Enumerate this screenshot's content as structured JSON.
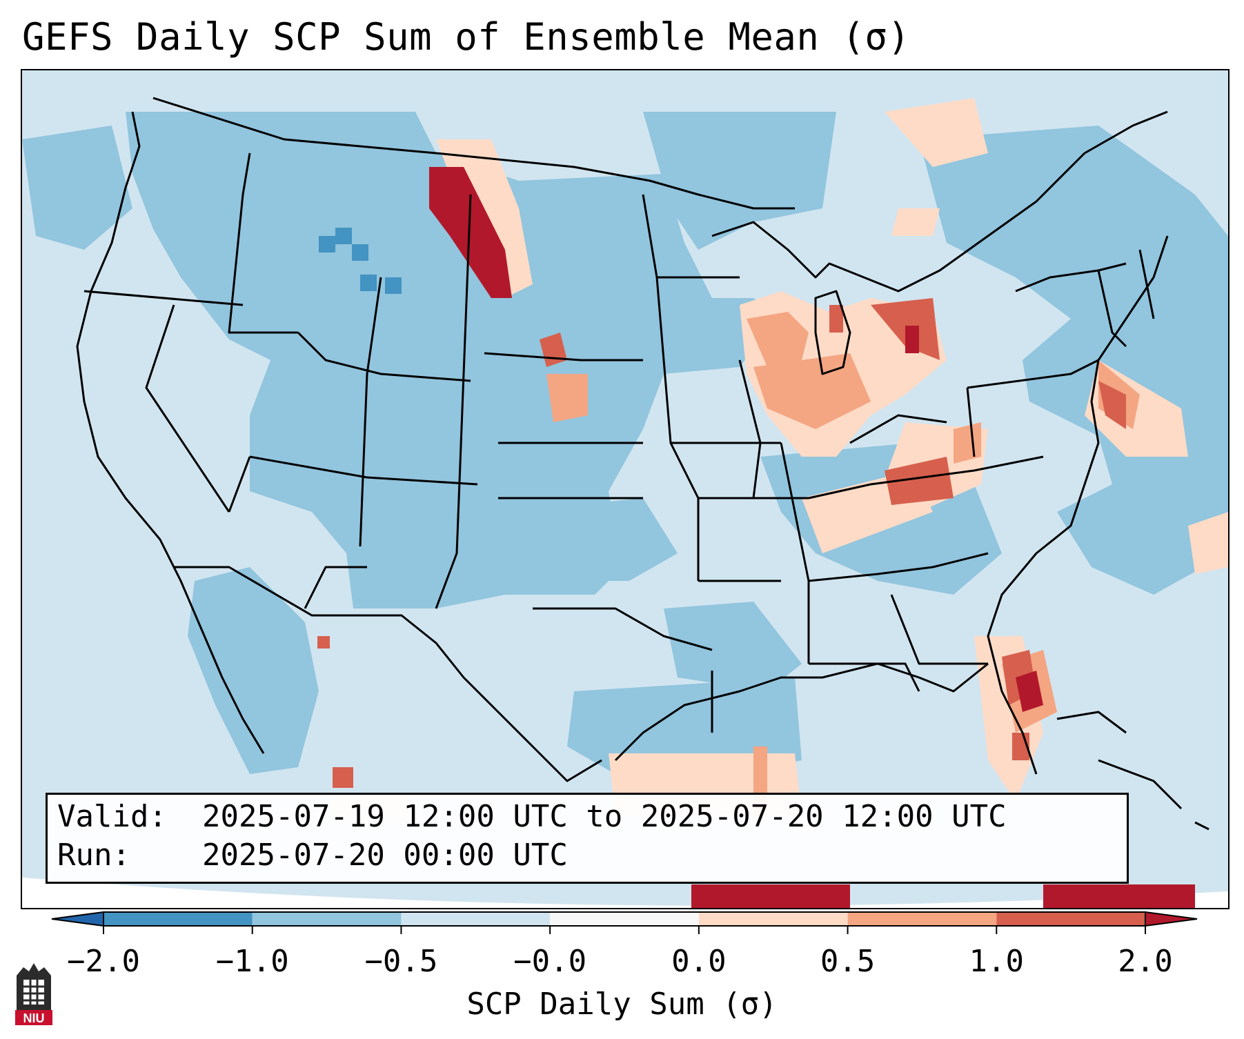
{
  "title": "GEFS Daily SCP Sum of Ensemble Mean (σ)",
  "info": {
    "valid_label": "Valid:",
    "valid_value": "2025-07-19 12:00 UTC to 2025-07-20 12:00 UTC",
    "run_label": "Run:",
    "run_value": "2025-07-20 00:00 UTC"
  },
  "colorbar": {
    "label": "SCP Daily Sum (σ)",
    "ticks": [
      "−2.0",
      "−1.0",
      "−0.5",
      "−0.0",
      "0.0",
      "0.5",
      "1.0",
      "2.0"
    ],
    "bins": [
      {
        "color": "#4393c3"
      },
      {
        "color": "#92c5de"
      },
      {
        "color": "#d1e5f0"
      },
      {
        "color": "#f7f7f7"
      },
      {
        "color": "#fddbc7"
      },
      {
        "color": "#f4a582"
      },
      {
        "color": "#d6604d"
      }
    ],
    "extend_low_color": "#2166ac",
    "extend_high_color": "#b2182b"
  },
  "map": {
    "domain": "CONUS",
    "field": "SCP daily sum anomaly",
    "colors": {
      "background": "#d1e5f0",
      "light_blue": "#92c5de",
      "mid_blue": "#4393c3",
      "light_red": "#fddbc7",
      "mid_red": "#f4a582",
      "red": "#d6604d",
      "dark_red": "#b2182b",
      "boundary": "#000000"
    }
  },
  "logo": {
    "text": "NIU",
    "color": "#c8102e"
  }
}
